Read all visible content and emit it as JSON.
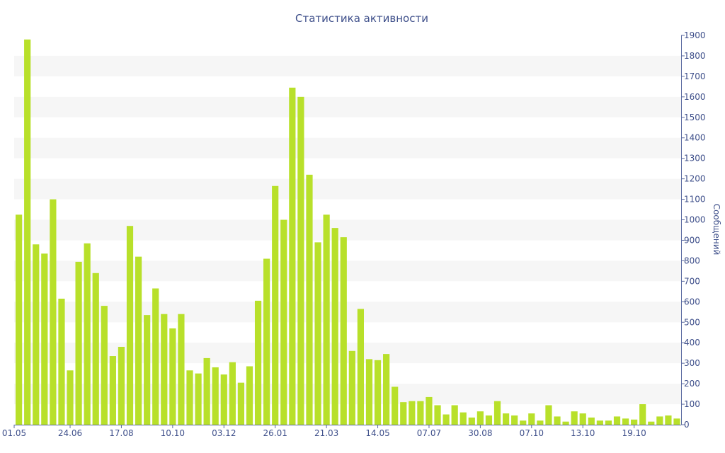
{
  "chart_data": {
    "type": "bar",
    "title": "Статистика активности",
    "xlabel": "",
    "ylabel": "Сообщений",
    "ylim": [
      0,
      1900
    ],
    "y_ticks": [
      0,
      100,
      200,
      300,
      400,
      500,
      600,
      700,
      800,
      900,
      1000,
      1100,
      1200,
      1300,
      1400,
      1500,
      1600,
      1700,
      1800,
      1900
    ],
    "y_axis_position": "right",
    "x_tick_labels": [
      {
        "index": 0,
        "label": "01.05"
      },
      {
        "index": 6,
        "label": "24.06"
      },
      {
        "index": 12,
        "label": "17.08"
      },
      {
        "index": 18,
        "label": "10.10"
      },
      {
        "index": 24,
        "label": "03.12"
      },
      {
        "index": 30,
        "label": "26.01"
      },
      {
        "index": 36,
        "label": "21.03"
      },
      {
        "index": 42,
        "label": "14.05"
      },
      {
        "index": 48,
        "label": "07.07"
      },
      {
        "index": 54,
        "label": "30.08"
      },
      {
        "index": 60,
        "label": "07.10"
      },
      {
        "index": 66,
        "label": "13.10"
      },
      {
        "index": 72,
        "label": "19.10"
      }
    ],
    "values": [
      1025,
      1880,
      880,
      835,
      1100,
      615,
      265,
      795,
      885,
      740,
      580,
      335,
      380,
      970,
      820,
      535,
      665,
      540,
      470,
      540,
      265,
      250,
      325,
      280,
      245,
      305,
      205,
      285,
      605,
      810,
      1165,
      1000,
      1645,
      1600,
      1220,
      890,
      1025,
      960,
      915,
      360,
      565,
      320,
      315,
      345,
      185,
      110,
      115,
      115,
      135,
      95,
      50,
      95,
      60,
      35,
      65,
      45,
      115,
      55,
      45,
      20,
      55,
      20,
      95,
      40,
      15,
      65,
      55,
      35,
      20,
      20,
      40,
      30,
      25,
      100,
      15,
      40,
      45,
      30
    ],
    "bar_color": "#b8e02a",
    "grid": "alternating horizontal bands",
    "colors": {
      "text": "#3e4f8a",
      "axis": "#5a6aa0",
      "band": "#f6f6f6"
    }
  }
}
